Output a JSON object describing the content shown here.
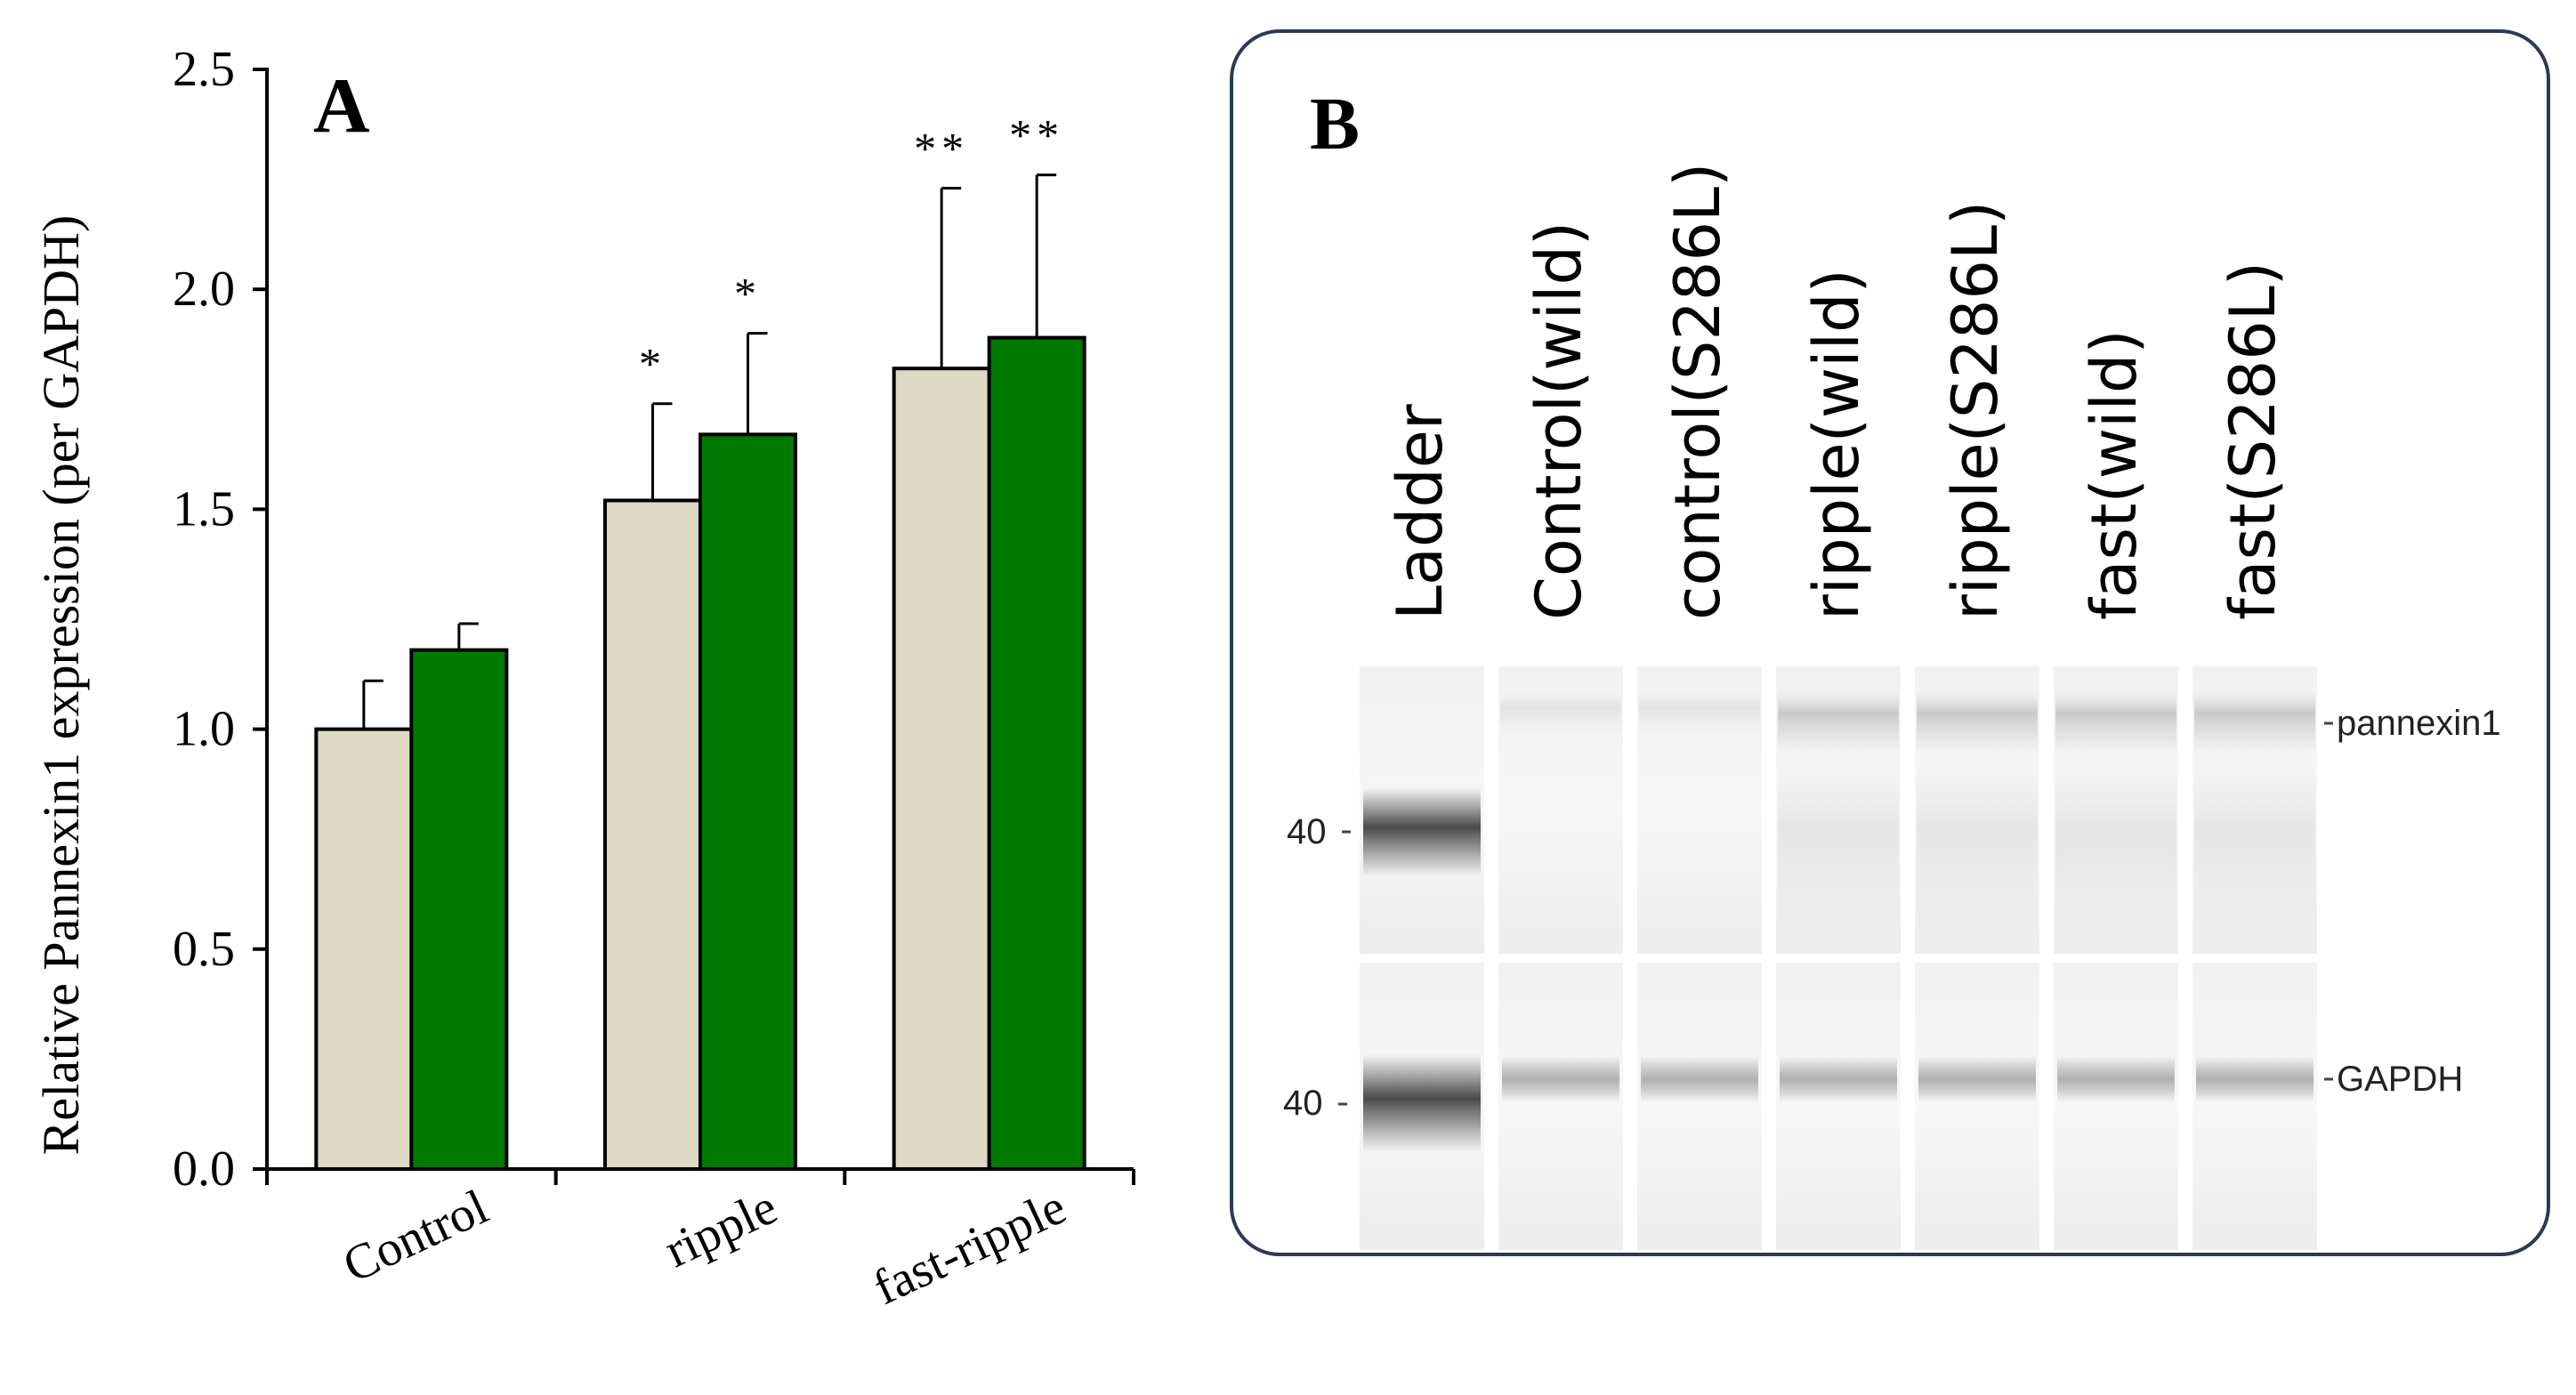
{
  "chart_data": {
    "type": "bar",
    "panel_label": "A",
    "ylabel": "Relative Pannexin1 expression (per GAPDH)",
    "xlabel": "",
    "ylim": [
      0,
      2.5
    ],
    "yticks": [
      "0.0",
      "0.5",
      "1.0",
      "1.5",
      "2.0",
      "2.5"
    ],
    "categories": [
      "Control",
      "ripple",
      "fast-ripple"
    ],
    "series": [
      {
        "color": "#ddd9c4",
        "values": [
          1.0,
          1.52,
          1.82
        ],
        "errors": [
          0.11,
          0.22,
          0.41
        ],
        "significance": [
          "",
          "*",
          "**"
        ]
      },
      {
        "color": "#007a00",
        "values": [
          1.18,
          1.67,
          1.89
        ],
        "errors": [
          0.06,
          0.23,
          0.37
        ],
        "significance": [
          "",
          "*",
          "**"
        ]
      }
    ]
  },
  "panel_b": {
    "label": "B",
    "lanes": [
      "Ladder",
      "Control(wild)",
      "control(S286L)",
      "ripple(wild)",
      "ripple(S286L)",
      "fast(wild)",
      "fast(S286L)"
    ],
    "marker_labels": [
      "40",
      "40"
    ],
    "band_labels": [
      "pannexin1",
      "GAPDH"
    ]
  }
}
